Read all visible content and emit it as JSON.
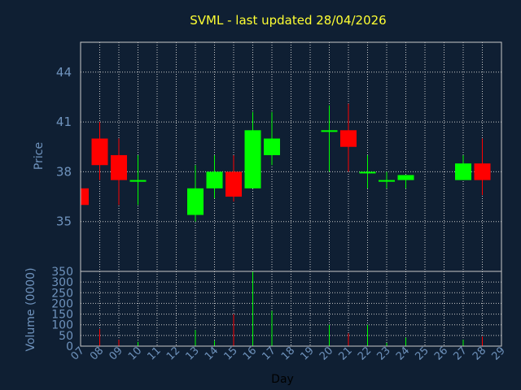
{
  "chart_data": {
    "type": "candlestick",
    "title": "SVML - last updated 28/04/2026",
    "ylabel": "Price",
    "volume_label": "Volume (0000)",
    "xlabel": "Day",
    "colors": {
      "background": "#0f1f33",
      "up": "#00ff00",
      "down": "#ff0000",
      "title": "#ffff33",
      "axis_text": "#6f93bd",
      "grid": "#c8c8c8"
    },
    "price_axis": {
      "min": 32.0,
      "max": 45.8,
      "ticks": [
        35,
        38,
        41,
        44
      ]
    },
    "volume_axis": {
      "min": 0,
      "max": 350,
      "ticks": [
        0,
        50,
        100,
        150,
        200,
        250,
        300,
        350
      ]
    },
    "x_axis": {
      "min": 7,
      "max": 29,
      "tick_labels": [
        "07",
        "08",
        "09",
        "10",
        "11",
        "12",
        "13",
        "14",
        "15",
        "16",
        "17",
        "18",
        "19",
        "20",
        "21",
        "22",
        "23",
        "24",
        "25",
        "26",
        "27",
        "28",
        "29"
      ]
    },
    "candles": [
      {
        "day": 7,
        "open": 37.0,
        "high": 37.0,
        "low": 36.0,
        "close": 36.0,
        "volume": 0
      },
      {
        "day": 8,
        "open": 40.0,
        "high": 41.0,
        "low": 37.5,
        "close": 38.4,
        "volume": 80
      },
      {
        "day": 9,
        "open": 39.0,
        "high": 40.0,
        "low": 36.0,
        "close": 37.5,
        "volume": 30
      },
      {
        "day": 10,
        "open": 37.4,
        "high": 39.0,
        "low": 36.0,
        "close": 37.5,
        "volume": 20
      },
      {
        "day": 13,
        "open": 35.4,
        "high": 38.4,
        "low": 35.0,
        "close": 37.0,
        "volume": 75
      },
      {
        "day": 14,
        "open": 37.0,
        "high": 39.0,
        "low": 36.4,
        "close": 38.0,
        "volume": 25
      },
      {
        "day": 15,
        "open": 38.0,
        "high": 39.0,
        "low": 36.2,
        "close": 36.5,
        "volume": 150
      },
      {
        "day": 16,
        "open": 37.0,
        "high": 41.6,
        "low": 37.0,
        "close": 40.5,
        "volume": 350
      },
      {
        "day": 17,
        "open": 39.0,
        "high": 41.6,
        "low": 38.4,
        "close": 40.0,
        "volume": 165
      },
      {
        "day": 20,
        "open": 40.4,
        "high": 42.0,
        "low": 38.0,
        "close": 40.5,
        "volume": 100
      },
      {
        "day": 21,
        "open": 40.5,
        "high": 42.1,
        "low": 38.0,
        "close": 39.5,
        "volume": 60
      },
      {
        "day": 22,
        "open": 37.9,
        "high": 39.0,
        "low": 37.0,
        "close": 38.0,
        "volume": 100
      },
      {
        "day": 23,
        "open": 37.4,
        "high": 38.0,
        "low": 37.0,
        "close": 37.5,
        "volume": 15
      },
      {
        "day": 24,
        "open": 37.5,
        "high": 37.8,
        "low": 37.0,
        "close": 37.8,
        "volume": 40
      },
      {
        "day": 27,
        "open": 37.5,
        "high": 39.0,
        "low": 37.5,
        "close": 38.5,
        "volume": 30
      },
      {
        "day": 28,
        "open": 38.5,
        "high": 40.0,
        "low": 36.6,
        "close": 37.5,
        "volume": 45
      }
    ]
  }
}
